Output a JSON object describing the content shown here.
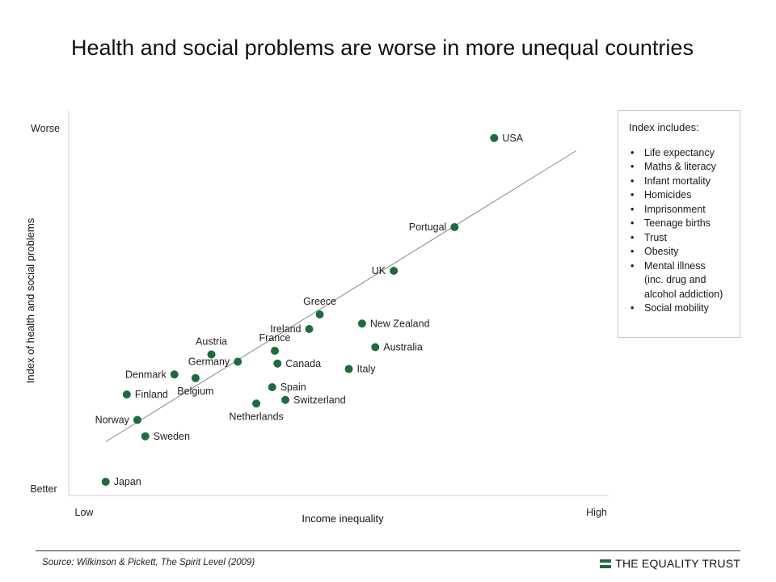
{
  "title": "Health and social problems are worse in more unequal countries",
  "chart_data": {
    "type": "scatter",
    "title": "Health and social problems are worse in more unequal countries",
    "xlabel": "Income inequality",
    "ylabel": "Index of health and social problems",
    "x_tick_labels": {
      "low": "Low",
      "high": "High"
    },
    "y_tick_labels": {
      "low": "Better",
      "high": "Worse"
    },
    "xlim": [
      0,
      100
    ],
    "ylim": [
      0,
      100
    ],
    "point_color": "#1e6b3f",
    "trendline": {
      "x": [
        5,
        94
      ],
      "y": [
        11,
        91
      ]
    },
    "points": [
      {
        "name": "USA",
        "x": 78.5,
        "y": 94.5,
        "label_side": "right"
      },
      {
        "name": "Portugal",
        "x": 71,
        "y": 70,
        "label_side": "left"
      },
      {
        "name": "UK",
        "x": 59.5,
        "y": 58,
        "label_side": "left"
      },
      {
        "name": "Greece",
        "x": 45.5,
        "y": 46,
        "label_side": "above"
      },
      {
        "name": "New Zealand",
        "x": 53.5,
        "y": 43.5,
        "label_side": "right"
      },
      {
        "name": "Ireland",
        "x": 43.5,
        "y": 42,
        "label_side": "left"
      },
      {
        "name": "Australia",
        "x": 56,
        "y": 37,
        "label_side": "right"
      },
      {
        "name": "France",
        "x": 37,
        "y": 36,
        "label_side": "above"
      },
      {
        "name": "Austria",
        "x": 25,
        "y": 35,
        "label_side": "above"
      },
      {
        "name": "Germany",
        "x": 30,
        "y": 33,
        "label_side": "left"
      },
      {
        "name": "Canada",
        "x": 37.5,
        "y": 32.5,
        "label_side": "right"
      },
      {
        "name": "Italy",
        "x": 51,
        "y": 31,
        "label_side": "right"
      },
      {
        "name": "Denmark",
        "x": 18,
        "y": 29.5,
        "label_side": "left"
      },
      {
        "name": "Belgium",
        "x": 22,
        "y": 28.5,
        "label_side": "below"
      },
      {
        "name": "Spain",
        "x": 36.5,
        "y": 26,
        "label_side": "right"
      },
      {
        "name": "Finland",
        "x": 9,
        "y": 24,
        "label_side": "right"
      },
      {
        "name": "Switzerland",
        "x": 39,
        "y": 22.5,
        "label_side": "right"
      },
      {
        "name": "Netherlands",
        "x": 33.5,
        "y": 21.5,
        "label_side": "below"
      },
      {
        "name": "Norway",
        "x": 11,
        "y": 17,
        "label_side": "left"
      },
      {
        "name": "Sweden",
        "x": 12.5,
        "y": 12.5,
        "label_side": "right"
      },
      {
        "name": "Japan",
        "x": 5,
        "y": 0,
        "label_side": "right"
      }
    ]
  },
  "legend": {
    "title": "Index includes:",
    "items": [
      "Life expectancy",
      "Maths & literacy",
      "Infant mortality",
      "Homicides",
      "Imprisonment",
      "Teenage births",
      "Trust",
      "Obesity",
      "Mental illness",
      "(inc. drug and",
      "alcohol addiction)",
      "Social mobility"
    ],
    "bullet": "•"
  },
  "footer": {
    "source": "Source: Wilkinson & Pickett, The Spirit Level (2009)",
    "brand": "THE EQUALITY TRUST"
  }
}
